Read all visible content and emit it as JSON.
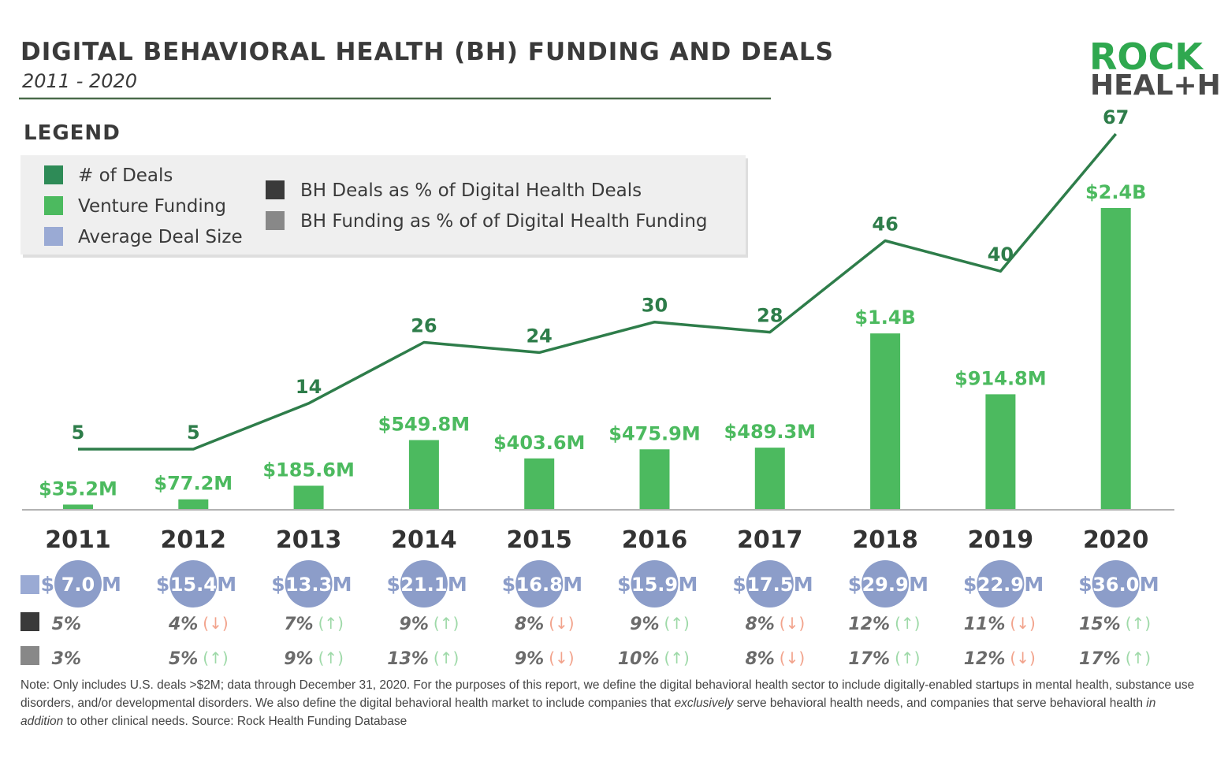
{
  "header": {
    "title": "DIGITAL BEHAVIORAL HEALTH (BH) FUNDING AND DEALS",
    "subtitle": "2011 - 2020",
    "logo_line1": "ROCK",
    "logo_line2": "HEAL+H"
  },
  "legend": {
    "heading": "LEGEND",
    "items": [
      {
        "label": "# of Deals",
        "color": "#2e8b57"
      },
      {
        "label": "Venture Funding",
        "color": "#4cba5f"
      },
      {
        "label": "Average Deal Size",
        "color": "#9aaad4"
      },
      {
        "label": "BH Deals as % of Digital Health Deals",
        "color": "#3a3a3a"
      },
      {
        "label": "BH Funding as % of of Digital Health Funding",
        "color": "#888888"
      }
    ]
  },
  "colors": {
    "bar": "#4cba5f",
    "line": "#2e7d4a",
    "avg_circle": "#8c9dc9",
    "axis": "#999999"
  },
  "chart_data": {
    "type": "bar",
    "title": "DIGITAL BEHAVIORAL HEALTH (BH) FUNDING AND DEALS",
    "categories": [
      "2011",
      "2012",
      "2013",
      "2014",
      "2015",
      "2016",
      "2017",
      "2018",
      "2019",
      "2020"
    ],
    "series": [
      {
        "name": "Venture Funding",
        "unit": "$M",
        "values": [
          35.2,
          77.2,
          185.6,
          549.8,
          403.6,
          475.9,
          489.3,
          1400,
          914.8,
          2400
        ],
        "labels": [
          "$35.2M",
          "$77.2M",
          "$185.6M",
          "$549.8M",
          "$403.6M",
          "$475.9M",
          "$489.3M",
          "$1.4B",
          "$914.8M",
          "$2.4B"
        ]
      },
      {
        "name": "# of Deals",
        "type": "line",
        "values": [
          5,
          5,
          14,
          26,
          24,
          30,
          28,
          46,
          40,
          67
        ]
      },
      {
        "name": "Average Deal Size",
        "values": [
          7.0,
          15.4,
          13.3,
          21.1,
          16.8,
          15.9,
          17.5,
          29.9,
          22.9,
          36.0
        ]
      },
      {
        "name": "BH Deals as % of Digital Health Deals",
        "values": [
          5,
          4,
          7,
          9,
          8,
          9,
          8,
          12,
          11,
          15
        ],
        "trend": [
          "",
          "down",
          "up",
          "up",
          "down",
          "up",
          "down",
          "up",
          "down",
          "up"
        ]
      },
      {
        "name": "BH Funding as % of of Digital Health Funding",
        "values": [
          3,
          5,
          9,
          13,
          9,
          10,
          8,
          17,
          12,
          17
        ],
        "trend": [
          "",
          "up",
          "up",
          "up",
          "down",
          "up",
          "down",
          "up",
          "down",
          "up"
        ]
      }
    ],
    "ylim": [
      0,
      2400
    ],
    "deals_ylim": [
      0,
      67
    ]
  },
  "note": {
    "part1": "Note: Only includes U.S. deals >$2M; data through December 31, 2020. For the purposes of this report, we define the digital behavioral health sector to include digitally-enabled startups in mental health, substance use disorders, and/or developmental disorders. We also define the digital behavioral health market to include companies that ",
    "emph1": "exclusively",
    "part2": " serve behavioral health needs, and companies that serve behavioral health ",
    "emph2": "in addition",
    "part3": " to other clinical needs. Source: Rock Health Funding Database"
  }
}
